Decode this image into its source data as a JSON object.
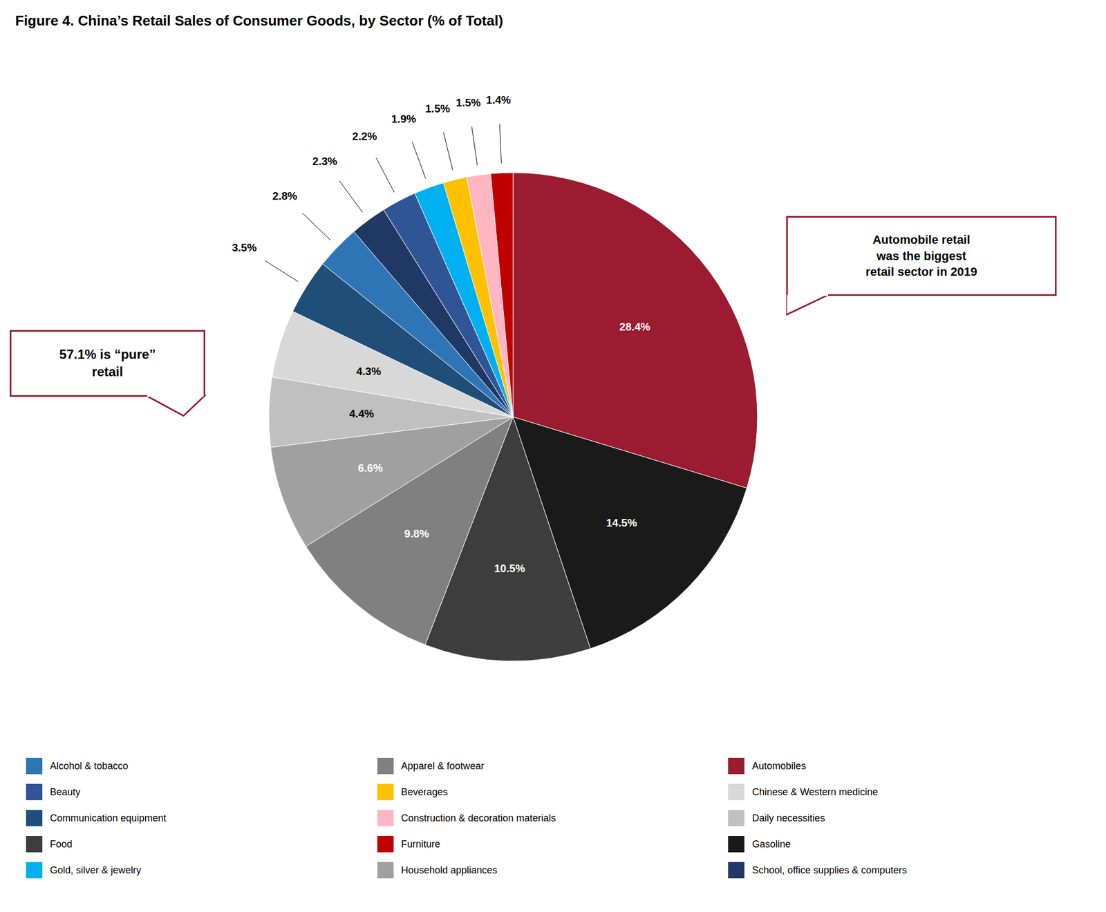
{
  "chart_data": {
    "type": "pie",
    "title": "Figure 4. China’s Retail Sales of Consumer Goods, by Sector (% of Total)",
    "categories": [
      "Automobiles",
      "Gasoline",
      "Food",
      "Apparel & footwear",
      "Household appliances",
      "Daily necessities",
      "Chinese & Western medicine",
      "Communication equipment",
      "Alcohol & tobacco",
      "School, office supplies & computers",
      "Beauty",
      "Gold, silver & jewelry",
      "Beverages",
      "Construction & decoration materials",
      "Furniture"
    ],
    "values": [
      28.4,
      14.5,
      10.5,
      9.8,
      6.6,
      4.4,
      4.3,
      3.5,
      2.8,
      2.3,
      2.2,
      1.9,
      1.5,
      1.5,
      1.4
    ],
    "value_labels": [
      "28.4%",
      "14.5%",
      "10.5%",
      "9.8%",
      "6.6%",
      "4.4%",
      "4.3%",
      "3.5%",
      "2.8%",
      "2.3%",
      "2.2%",
      "1.9%",
      "1.5%",
      "1.5%",
      "1.4%"
    ],
    "colors": [
      "#9B1B30",
      "#1A1A1A",
      "#3D3D3D",
      "#808080",
      "#A0A0A0",
      "#C0C0C0",
      "#D8D8D8",
      "#1F4E79",
      "#2E75B6",
      "#1F3864",
      "#2F5597",
      "#00B0F0",
      "#FFC000",
      "#FFB6C1",
      "#C00000"
    ],
    "annotations": [
      "Automobile retail\nwas the biggest\nretail sector in 2019",
      "57.1% is “pure”\nretail"
    ],
    "data_labels": true,
    "legend": "bottom"
  }
}
